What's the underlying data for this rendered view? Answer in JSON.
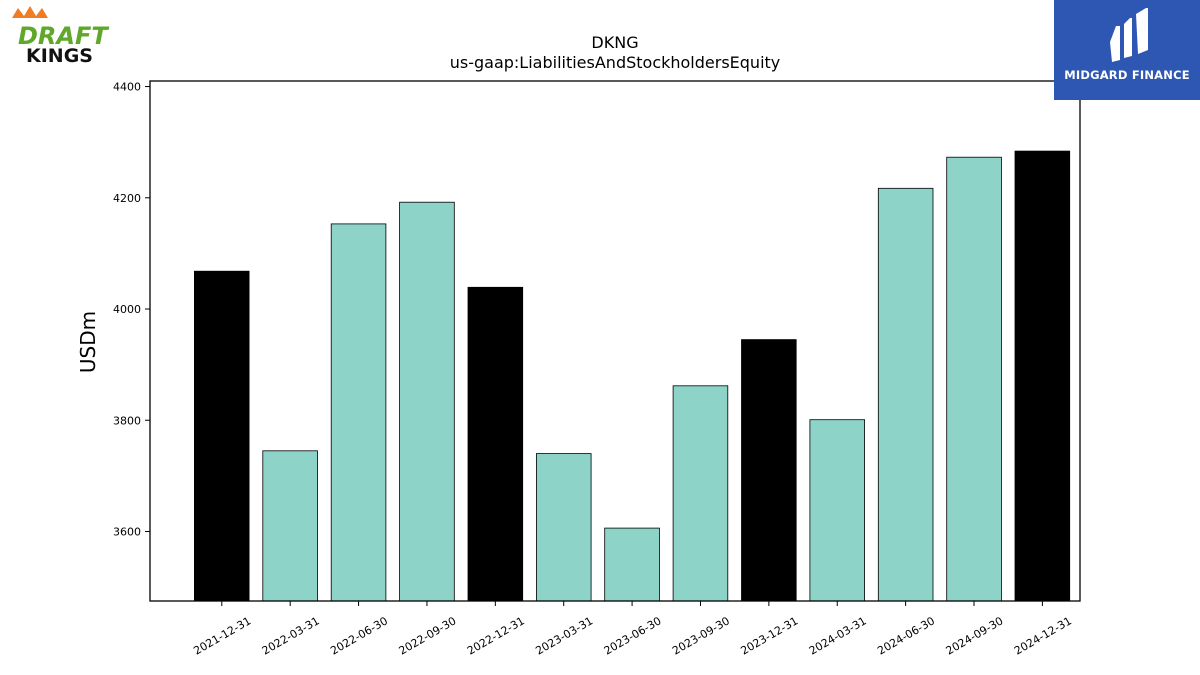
{
  "logos": {
    "left_brand_line1": "DRAFT",
    "left_brand_line2": "KINGS",
    "right_brand": "MIDGARD FINANCE"
  },
  "chart_data": {
    "type": "bar",
    "title": "DKNG",
    "subtitle": "us-gaap:LiabilitiesAndStockholdersEquity",
    "xlabel": "",
    "ylabel": "USDm",
    "ylim": [
      3475,
      4410
    ],
    "yticks": [
      3600,
      3800,
      4000,
      4200,
      4400
    ],
    "grid": false,
    "categories": [
      "2021-12-31",
      "2022-03-31",
      "2022-06-30",
      "2022-09-30",
      "2022-12-31",
      "2023-03-31",
      "2023-06-30",
      "2023-09-30",
      "2023-12-31",
      "2024-03-31",
      "2024-06-30",
      "2024-09-30",
      "2024-12-31"
    ],
    "values": [
      4068,
      3745,
      4153,
      4192,
      4039,
      3740,
      3606,
      3862,
      3945,
      3801,
      4217,
      4273,
      4284
    ],
    "bar_colors": [
      "#000000",
      "#8dd3c7",
      "#8dd3c7",
      "#8dd3c7",
      "#000000",
      "#8dd3c7",
      "#8dd3c7",
      "#8dd3c7",
      "#000000",
      "#8dd3c7",
      "#8dd3c7",
      "#8dd3c7",
      "#000000"
    ]
  }
}
